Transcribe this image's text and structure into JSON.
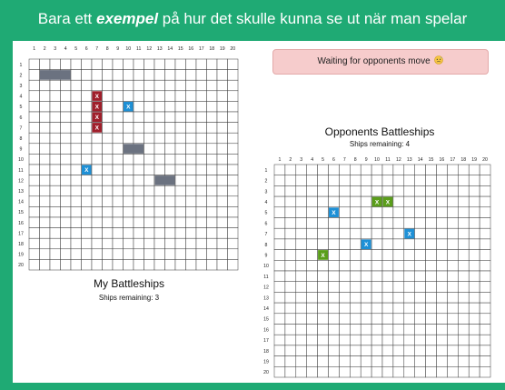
{
  "banner": {
    "prefix": "Bara ett ",
    "emphasis": "exempel",
    "suffix": " på hur det skulle kunna se ut när man spelar"
  },
  "status": {
    "message": "Waiting for opponents move",
    "icon": "cold-sweat-emoji-icon"
  },
  "my_board": {
    "title": "My Battleships",
    "ships_remaining_label": "Ships remaining: 3",
    "columns": [
      1,
      2,
      3,
      4,
      5,
      6,
      7,
      8,
      9,
      10,
      11,
      12,
      13,
      14,
      15,
      16,
      17,
      18,
      19,
      20
    ],
    "rows": [
      1,
      2,
      3,
      4,
      5,
      6,
      7,
      8,
      9,
      10,
      11,
      12,
      13,
      14,
      15,
      16,
      17,
      18,
      19,
      20
    ],
    "ships": [
      {
        "row": 2,
        "col_start": 2,
        "col_end": 4,
        "color": "#6b7280"
      },
      {
        "row": 9,
        "col_start": 10,
        "col_end": 11,
        "color": "#6b7280"
      },
      {
        "row": 12,
        "col_start": 13,
        "col_end": 14,
        "color": "#6b7280"
      }
    ],
    "marked_cells": [
      {
        "row": 4,
        "col": 7,
        "mark": "X",
        "color": "#a01f2b"
      },
      {
        "row": 5,
        "col": 7,
        "mark": "X",
        "color": "#a01f2b"
      },
      {
        "row": 6,
        "col": 7,
        "mark": "X",
        "color": "#a01f2b"
      },
      {
        "row": 7,
        "col": 7,
        "mark": "X",
        "color": "#a01f2b"
      },
      {
        "row": 5,
        "col": 10,
        "mark": "X",
        "color": "#1e90d6"
      },
      {
        "row": 11,
        "col": 6,
        "mark": "X",
        "color": "#1e90d6"
      }
    ]
  },
  "opponent_board": {
    "title": "Opponents Battleships",
    "ships_remaining_label": "Ships remaining: 4",
    "columns": [
      1,
      2,
      3,
      4,
      5,
      6,
      7,
      8,
      9,
      10,
      11,
      12,
      13,
      14,
      15,
      16,
      17,
      18,
      19,
      20
    ],
    "rows": [
      1,
      2,
      3,
      4,
      5,
      6,
      7,
      8,
      9,
      10,
      11,
      12,
      13,
      14,
      15,
      16,
      17,
      18,
      19,
      20
    ],
    "marked_cells": [
      {
        "row": 4,
        "col": 10,
        "mark": "X",
        "color": "#5a9e1a"
      },
      {
        "row": 4,
        "col": 11,
        "mark": "X",
        "color": "#5a9e1a"
      },
      {
        "row": 5,
        "col": 6,
        "mark": "X",
        "color": "#1e90d6"
      },
      {
        "row": 7,
        "col": 13,
        "mark": "X",
        "color": "#1e90d6"
      },
      {
        "row": 8,
        "col": 9,
        "mark": "X",
        "color": "#1e90d6"
      },
      {
        "row": 9,
        "col": 5,
        "mark": "X",
        "color": "#5a9e1a"
      }
    ]
  }
}
